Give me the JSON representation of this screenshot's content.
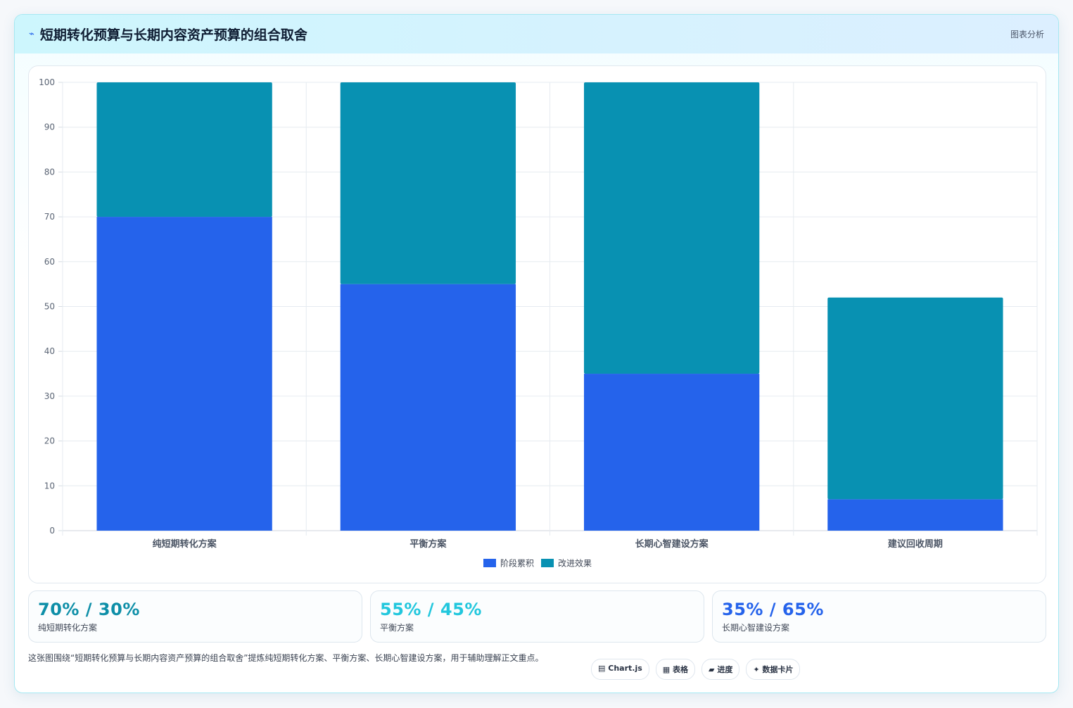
{
  "header": {
    "title_icon": "⌁",
    "title": "短期转化预算与长期内容资产预算的组合取舍",
    "badge": "图表分析"
  },
  "chart_data": {
    "type": "bar",
    "stacked": true,
    "categories": [
      "纯短期转化方案",
      "平衡方案",
      "长期心智建设方案",
      "建议回收周期"
    ],
    "series": [
      {
        "name": "阶段累积",
        "color": "#2563eb",
        "values": [
          70,
          55,
          35,
          7
        ]
      },
      {
        "name": "改进效果",
        "color": "#0891b2",
        "values": [
          30,
          45,
          65,
          45
        ]
      }
    ],
    "ylim": [
      0,
      100
    ],
    "yticks": [
      0,
      10,
      20,
      30,
      40,
      50,
      60,
      70,
      80,
      90,
      100
    ],
    "grid": true,
    "legend": "bottom"
  },
  "stats": [
    {
      "value": "70% / 30%",
      "label": "纯短期转化方案",
      "color": "#0e8fa8"
    },
    {
      "value": "55% / 45%",
      "label": "平衡方案",
      "color": "#22c7dd"
    },
    {
      "value": "35% / 65%",
      "label": "长期心智建设方案",
      "color": "#2563eb"
    }
  ],
  "footer": {
    "description": "这张图围绕“短期转化预算与长期内容资产预算的组合取舍”提炼纯短期转化方案、平衡方案、长期心智建设方案，用于辅助理解正文重点。",
    "tags": [
      {
        "icon": "▤",
        "label": "Chart.js"
      },
      {
        "icon": "▦",
        "label": "表格"
      },
      {
        "icon": "▰",
        "label": "进度"
      },
      {
        "icon": "✦",
        "label": "数据卡片"
      }
    ]
  }
}
